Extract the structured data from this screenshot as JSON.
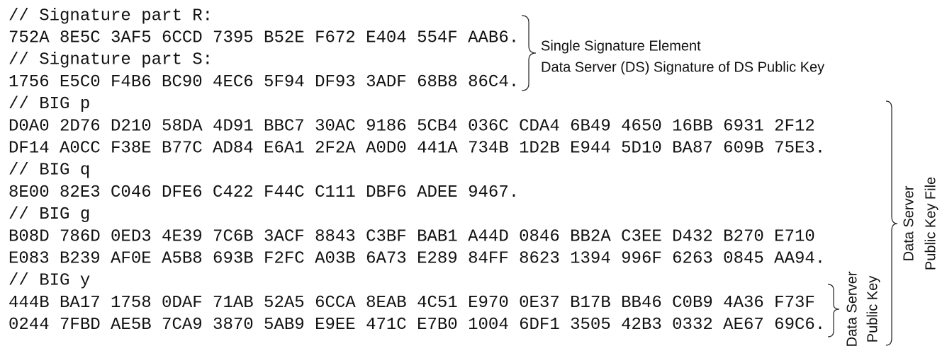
{
  "code_lines": [
    "// Signature part R:",
    "752A 8E5C 3AF5 6CCD 7395 B52E F672 E404 554F AAB6.",
    "// Signature part S:",
    "1756 E5C0 F4B6 BC90 4EC6 5F94 DF93 3ADF 68B8 86C4.",
    "// BIG p",
    "D0A0 2D76 D210 58DA 4D91 BBC7 30AC 9186 5CB4 036C CDA4 6B49 4650 16BB 6931 2F12",
    "DF14 A0CC F38E B77C AD84 E6A1 2F2A A0D0 441A 734B 1D2B E944 5D10 BA87 609B 75E3.",
    "// BIG q",
    "8E00 82E3 C046 DFE6 C422 F44C C111 DBF6 ADEE 9467.",
    "// BIG g",
    "B08D 786D 0ED3 4E39 7C6B 3ACF 8843 C3BF BAB1 A44D 0846 BB2A C3EE D432 B270 E710",
    "E083 B239 AF0E A5B8 693B F2FC A03B 6A73 E289 84FF 8623 1394 996F 6263 0845 AA94.",
    "// BIG y",
    "444B BA17 1758 0DAF 71AB 52A5 6CCA 8EAB 4C51 E970 0E37 B17B BB46 C0B9 4A36 F73F",
    "0244 7FBD AE5B 7CA9 3870 5AB9 E9EE 471C E7B0 1004 6DF1 3505 42B3 0332 AE67 69C6."
  ],
  "annotations": {
    "signature": [
      "Single Signature Element",
      "Data Server (DS) Signature of DS Public Key"
    ],
    "public_key": [
      "Data Server",
      "Public Key"
    ],
    "public_key_file": [
      "Data Server",
      "Public Key File"
    ]
  }
}
